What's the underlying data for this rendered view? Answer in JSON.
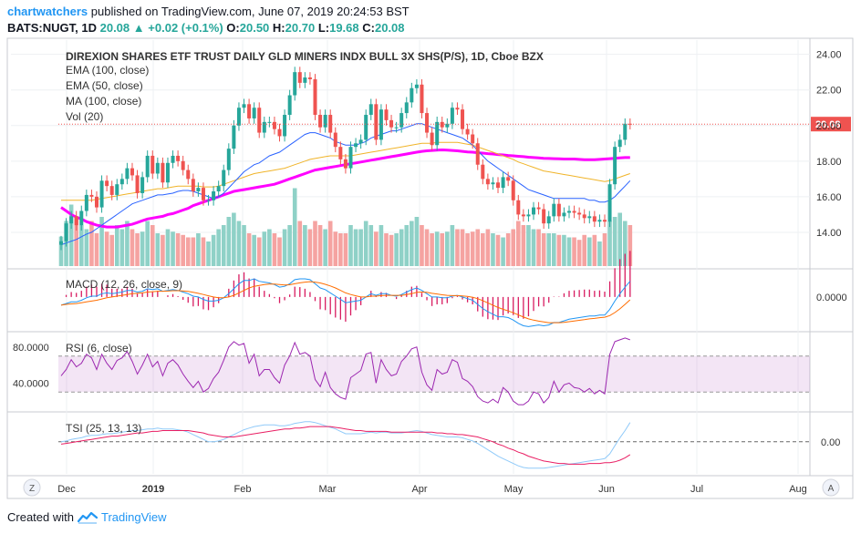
{
  "header": {
    "user": "chartwatchers",
    "published_text": "published on TradingView.com, June 07, 2019 20:24:53 BST",
    "symbol": "BATS:NUGT, 1D",
    "last": "20.08",
    "change": "+0.02 (+0.1%)",
    "o_label": "O:",
    "o": "20.50",
    "h_label": "H:",
    "h": "20.70",
    "l_label": "L:",
    "l": "19.68",
    "c_label": "C:",
    "c": "20.08"
  },
  "footer": {
    "created_with": "Created with",
    "brand": "TradingView"
  },
  "buttons": {
    "zoom_out": "Z",
    "auto": "A"
  },
  "colors": {
    "up": "#26a69a",
    "down": "#ef5350",
    "ema100": "#ff00ff",
    "ema50": "#f0b429",
    "ma100": "#2962ff",
    "macd": "#2196f3",
    "signal": "#ff6d00",
    "rsi": "#9c27b0",
    "tsi_line": "#2196f3",
    "tsi_signal": "#e91e63"
  },
  "chart_data": [
    {
      "type": "candlestick",
      "title": "DIREXION SHARES ETF TRUST DAILY GLD MINERS INDX BULL 3X SHS(P/S), 1D, Cboe BZX",
      "indicators": [
        "EMA (100, close)",
        "EMA (50, close)",
        "MA (100, close)",
        "Vol (20)"
      ],
      "y_ticks": [
        "24.00",
        "22.00",
        "20.00",
        "18.00",
        "16.00",
        "14.00"
      ],
      "ylim": [
        12.0,
        24.8
      ],
      "last_price_label": "20.08",
      "x_ticks": [
        "Dec",
        "2019",
        "Feb",
        "Mar",
        "Apr",
        "May",
        "Jun",
        "Jul",
        "Aug"
      ],
      "close": [
        13.5,
        14.5,
        14.9,
        14.4,
        15.2,
        16.1,
        16.0,
        15.4,
        16.9,
        16.6,
        16.1,
        16.7,
        17.0,
        17.6,
        17.2,
        16.2,
        17.1,
        18.3,
        17.3,
        17.9,
        16.8,
        17.9,
        18.3,
        18.0,
        17.5,
        17.0,
        16.3,
        16.5,
        15.8,
        15.8,
        16.3,
        16.6,
        17.5,
        18.7,
        20.0,
        21.0,
        21.2,
        20.4,
        21.0,
        19.6,
        20.2,
        20.2,
        19.8,
        19.4,
        20.6,
        21.7,
        23.0,
        22.4,
        22.7,
        22.6,
        20.6,
        19.9,
        20.6,
        19.6,
        18.8,
        18.1,
        17.6,
        18.8,
        19.0,
        19.2,
        20.6,
        21.2,
        19.2,
        20.9,
        20.3,
        19.9,
        19.9,
        20.7,
        21.3,
        22.1,
        22.3,
        20.7,
        19.6,
        18.9,
        20.2,
        19.9,
        20.1,
        21.0,
        20.9,
        19.8,
        19.5,
        19.0,
        17.8,
        17.0,
        16.7,
        16.8,
        16.5,
        17.1,
        16.9,
        15.8,
        15.0,
        14.9,
        15.0,
        15.4,
        15.3,
        14.5,
        14.9,
        15.6,
        14.9,
        15.1,
        15.2,
        15.1,
        15.0,
        14.8,
        14.9,
        14.6,
        14.7,
        14.6,
        16.7,
        18.8,
        19.2,
        20.1,
        20.08
      ],
      "ema100": [
        15.4,
        15.2,
        15.0,
        14.85,
        14.75,
        14.6,
        14.5,
        14.4,
        14.35,
        14.3,
        14.3,
        14.3,
        14.35,
        14.4,
        14.45,
        14.55,
        14.65,
        14.75,
        14.8,
        14.85,
        14.9,
        15.0,
        15.05,
        15.15,
        15.25,
        15.35,
        15.5,
        15.6,
        15.7,
        15.8,
        15.9,
        16.0,
        16.1,
        16.2,
        16.3,
        16.35,
        16.4,
        16.45,
        16.5,
        16.55,
        16.6,
        16.65,
        16.7,
        16.8,
        16.9,
        17.0,
        17.1,
        17.2,
        17.3,
        17.4,
        17.5,
        17.55,
        17.6,
        17.65,
        17.7,
        17.75,
        17.8,
        17.85,
        17.9,
        17.95,
        18.0,
        18.05,
        18.1,
        18.15,
        18.2,
        18.25,
        18.3,
        18.35,
        18.4,
        18.45,
        18.5,
        18.55,
        18.58,
        18.6,
        18.62,
        18.63,
        18.62,
        18.6,
        18.58,
        18.55,
        18.52,
        18.5,
        18.47,
        18.45,
        18.42,
        18.4,
        18.37,
        18.35,
        18.32,
        18.3,
        18.27,
        18.25,
        18.22,
        18.2,
        18.18,
        18.16,
        18.15,
        18.14,
        18.13,
        18.12,
        18.12,
        18.12,
        18.1,
        18.08,
        18.08,
        18.08,
        18.1,
        18.12,
        18.14,
        18.16,
        18.18,
        18.2,
        18.2
      ],
      "ema50": [
        15.8,
        15.8,
        15.8,
        15.8,
        15.8,
        15.8,
        15.8,
        15.85,
        15.9,
        15.95,
        16.0,
        16.05,
        16.1,
        16.15,
        16.2,
        16.25,
        16.3,
        16.35,
        16.4,
        16.45,
        16.45,
        16.5,
        16.55,
        16.6,
        16.6,
        16.6,
        16.6,
        16.6,
        16.55,
        16.55,
        16.55,
        16.6,
        16.7,
        16.8,
        16.9,
        17.0,
        17.1,
        17.2,
        17.3,
        17.35,
        17.4,
        17.45,
        17.5,
        17.55,
        17.6,
        17.7,
        17.8,
        17.9,
        18.0,
        18.1,
        18.15,
        18.2,
        18.25,
        18.3,
        18.3,
        18.3,
        18.3,
        18.3,
        18.35,
        18.4,
        18.45,
        18.5,
        18.55,
        18.6,
        18.65,
        18.7,
        18.75,
        18.8,
        18.85,
        18.9,
        18.95,
        19.0,
        19.0,
        19.0,
        19.05,
        19.05,
        19.05,
        19.05,
        19.05,
        19.0,
        18.95,
        18.9,
        18.8,
        18.7,
        18.6,
        18.5,
        18.4,
        18.3,
        18.2,
        18.1,
        17.95,
        17.85,
        17.75,
        17.65,
        17.55,
        17.45,
        17.4,
        17.35,
        17.3,
        17.25,
        17.2,
        17.15,
        17.1,
        17.05,
        17.0,
        16.95,
        16.9,
        16.85,
        16.9,
        17.0,
        17.1,
        17.2,
        17.3
      ],
      "ma100": [
        13.3,
        13.4,
        13.5,
        13.6,
        13.75,
        13.9,
        14.0,
        14.2,
        14.4,
        14.6,
        14.8,
        15.0,
        15.2,
        15.4,
        15.6,
        15.7,
        15.8,
        15.9,
        16.0,
        16.1,
        16.1,
        16.15,
        16.2,
        16.3,
        16.35,
        16.35,
        16.3,
        16.2,
        16.1,
        16.0,
        15.9,
        16.0,
        16.2,
        16.5,
        16.8,
        17.1,
        17.4,
        17.6,
        17.8,
        17.9,
        18.1,
        18.3,
        18.4,
        18.5,
        18.7,
        18.9,
        19.1,
        19.3,
        19.5,
        19.6,
        19.6,
        19.5,
        19.4,
        19.3,
        19.1,
        19.0,
        18.9,
        18.9,
        18.9,
        19.0,
        19.1,
        19.3,
        19.4,
        19.5,
        19.6,
        19.7,
        19.7,
        19.8,
        19.9,
        20.0,
        20.1,
        20.1,
        20.0,
        19.9,
        19.8,
        19.7,
        19.6,
        19.5,
        19.4,
        19.3,
        19.1,
        18.9,
        18.6,
        18.3,
        18.0,
        17.8,
        17.6,
        17.4,
        17.2,
        17.0,
        16.8,
        16.6,
        16.4,
        16.3,
        16.2,
        16.1,
        16.0,
        15.9,
        15.9,
        15.9,
        15.9,
        15.9,
        15.9,
        15.9,
        15.8,
        15.8,
        15.7,
        15.7,
        15.8,
        16.0,
        16.3,
        16.6,
        16.9
      ],
      "volume": [
        0.36,
        0.55,
        0.75,
        0.6,
        0.5,
        0.45,
        0.55,
        0.4,
        0.6,
        0.42,
        0.38,
        0.5,
        0.45,
        0.55,
        0.45,
        0.4,
        0.42,
        0.55,
        0.5,
        0.4,
        0.38,
        0.45,
        0.42,
        0.4,
        0.38,
        0.35,
        0.35,
        0.4,
        0.35,
        0.3,
        0.38,
        0.45,
        0.5,
        0.6,
        0.65,
        0.55,
        0.5,
        0.4,
        0.38,
        0.35,
        0.42,
        0.45,
        0.4,
        0.35,
        0.45,
        0.5,
        0.95,
        0.55,
        0.5,
        0.45,
        0.55,
        0.5,
        0.45,
        0.55,
        0.42,
        0.4,
        0.4,
        0.5,
        0.45,
        0.45,
        0.55,
        0.5,
        0.42,
        0.5,
        0.4,
        0.38,
        0.4,
        0.45,
        0.5,
        0.55,
        0.6,
        0.5,
        0.45,
        0.4,
        0.42,
        0.4,
        0.42,
        0.5,
        0.45,
        0.45,
        0.4,
        0.42,
        0.45,
        0.4,
        0.45,
        0.4,
        0.38,
        0.35,
        0.4,
        0.45,
        0.55,
        0.5,
        0.5,
        0.45,
        0.45,
        0.4,
        0.4,
        0.4,
        0.38,
        0.38,
        0.35,
        0.35,
        0.32,
        0.38,
        0.35,
        0.38,
        0.3,
        0.4,
        0.55,
        0.6,
        0.65,
        0.55,
        0.5
      ]
    },
    {
      "type": "line",
      "title": "MACD (12, 26, close, 9)",
      "y_ticks": [
        "0.0000"
      ],
      "ylim": [
        -2.0,
        1.6
      ],
      "macd": [
        -0.5,
        -0.4,
        -0.3,
        -0.3,
        -0.2,
        -0.05,
        0.05,
        0.05,
        0.2,
        0.25,
        0.2,
        0.25,
        0.3,
        0.4,
        0.4,
        0.3,
        0.35,
        0.5,
        0.45,
        0.5,
        0.35,
        0.4,
        0.45,
        0.4,
        0.3,
        0.2,
        0.05,
        0.0,
        -0.15,
        -0.25,
        -0.25,
        -0.2,
        -0.05,
        0.2,
        0.5,
        0.8,
        1.0,
        1.0,
        1.1,
        0.95,
        0.9,
        0.85,
        0.75,
        0.6,
        0.65,
        0.8,
        1.05,
        1.1,
        1.1,
        1.05,
        0.8,
        0.55,
        0.45,
        0.25,
        0.05,
        -0.15,
        -0.35,
        -0.3,
        -0.25,
        -0.2,
        0.0,
        0.2,
        0.1,
        0.2,
        0.2,
        0.1,
        0.05,
        0.15,
        0.3,
        0.45,
        0.55,
        0.4,
        0.2,
        0.0,
        0.0,
        -0.05,
        -0.05,
        0.05,
        0.1,
        0.0,
        -0.1,
        -0.2,
        -0.45,
        -0.7,
        -0.9,
        -1.05,
        -1.2,
        -1.2,
        -1.25,
        -1.4,
        -1.6,
        -1.75,
        -1.8,
        -1.75,
        -1.7,
        -1.75,
        -1.7,
        -1.55,
        -1.55,
        -1.45,
        -1.35,
        -1.3,
        -1.25,
        -1.2,
        -1.15,
        -1.15,
        -1.1,
        -1.1,
        -0.75,
        -0.25,
        0.2,
        0.6,
        0.95
      ],
      "signal": [
        -0.5,
        -0.45,
        -0.42,
        -0.4,
        -0.35,
        -0.3,
        -0.25,
        -0.2,
        -0.12,
        -0.05,
        0.0,
        0.05,
        0.1,
        0.15,
        0.2,
        0.22,
        0.25,
        0.3,
        0.32,
        0.35,
        0.35,
        0.36,
        0.38,
        0.38,
        0.37,
        0.34,
        0.28,
        0.22,
        0.15,
        0.07,
        0.0,
        -0.05,
        -0.05,
        0.0,
        0.1,
        0.25,
        0.4,
        0.55,
        0.65,
        0.7,
        0.75,
        0.78,
        0.78,
        0.75,
        0.73,
        0.74,
        0.8,
        0.86,
        0.9,
        0.93,
        0.9,
        0.85,
        0.77,
        0.67,
        0.55,
        0.4,
        0.25,
        0.15,
        0.07,
        0.0,
        0.0,
        0.05,
        0.05,
        0.08,
        0.1,
        0.1,
        0.1,
        0.1,
        0.15,
        0.2,
        0.28,
        0.3,
        0.28,
        0.22,
        0.18,
        0.13,
        0.1,
        0.08,
        0.08,
        0.06,
        0.03,
        -0.02,
        -0.1,
        -0.22,
        -0.36,
        -0.5,
        -0.64,
        -0.75,
        -0.85,
        -0.96,
        -1.09,
        -1.22,
        -1.33,
        -1.41,
        -1.47,
        -1.52,
        -1.56,
        -1.56,
        -1.56,
        -1.54,
        -1.5,
        -1.46,
        -1.42,
        -1.38,
        -1.33,
        -1.3,
        -1.26,
        -1.23,
        -1.13,
        -0.95,
        -0.72,
        -0.45,
        -0.17
      ]
    },
    {
      "type": "line",
      "title": "RSI (6, close)",
      "y_ticks": [
        "80.0000",
        "40.0000"
      ],
      "ylim": [
        10,
        95
      ],
      "bands": [
        70,
        30
      ],
      "values": [
        48,
        55,
        66,
        58,
        62,
        72,
        68,
        55,
        72,
        62,
        55,
        65,
        68,
        75,
        64,
        50,
        60,
        72,
        58,
        64,
        48,
        62,
        66,
        60,
        50,
        42,
        35,
        42,
        30,
        34,
        45,
        52,
        65,
        80,
        86,
        82,
        84,
        62,
        72,
        48,
        55,
        55,
        46,
        40,
        60,
        70,
        85,
        72,
        74,
        70,
        44,
        36,
        52,
        35,
        28,
        24,
        22,
        46,
        50,
        54,
        72,
        74,
        40,
        66,
        55,
        48,
        50,
        64,
        70,
        78,
        80,
        52,
        38,
        32,
        55,
        50,
        52,
        66,
        63,
        45,
        42,
        36,
        25,
        20,
        18,
        22,
        18,
        35,
        30,
        20,
        16,
        16,
        20,
        30,
        28,
        18,
        24,
        42,
        30,
        38,
        40,
        35,
        34,
        30,
        34,
        28,
        32,
        28,
        72,
        86,
        88,
        90,
        88
      ]
    },
    {
      "type": "line",
      "title": "TSI (25, 13, 13)",
      "y_ticks": [
        "0.00"
      ],
      "ylim": [
        -40,
        35
      ],
      "tsi": [
        0,
        1,
        3,
        4,
        5,
        7,
        8,
        8,
        9,
        10,
        10,
        11,
        12,
        13,
        14,
        14,
        15,
        16,
        16,
        17,
        16,
        16,
        16,
        15,
        14,
        12,
        9,
        6,
        3,
        0,
        0,
        1,
        3,
        6,
        9,
        12,
        15,
        17,
        19,
        20,
        21,
        21,
        21,
        20,
        20,
        21,
        23,
        24,
        25,
        25,
        24,
        22,
        20,
        18,
        16,
        13,
        10,
        10,
        10,
        10,
        11,
        12,
        11,
        12,
        12,
        11,
        11,
        11,
        12,
        13,
        14,
        13,
        11,
        9,
        8,
        7,
        6,
        6,
        6,
        5,
        3,
        1,
        -2,
        -6,
        -10,
        -14,
        -18,
        -21,
        -24,
        -27,
        -30,
        -32,
        -33,
        -33,
        -33,
        -33,
        -32,
        -31,
        -30,
        -29,
        -28,
        -27,
        -26,
        -25,
        -24,
        -23,
        -22,
        -21,
        -15,
        -5,
        5,
        14,
        24
      ],
      "signal": [
        -3,
        -2,
        -1,
        0,
        1,
        2,
        3,
        4,
        5,
        6,
        7,
        7,
        8,
        9,
        10,
        11,
        11,
        12,
        13,
        13,
        14,
        14,
        14,
        14,
        14,
        14,
        13,
        12,
        11,
        9,
        8,
        7,
        6,
        6,
        6,
        7,
        8,
        9,
        10,
        11,
        12,
        13,
        14,
        15,
        16,
        16,
        17,
        17,
        18,
        19,
        19,
        19,
        19,
        19,
        18,
        17,
        16,
        15,
        14,
        14,
        13,
        13,
        13,
        13,
        13,
        12,
        12,
        12,
        12,
        12,
        12,
        12,
        12,
        12,
        11,
        11,
        10,
        10,
        9,
        9,
        8,
        7,
        6,
        4,
        2,
        0,
        -3,
        -5,
        -8,
        -10,
        -13,
        -15,
        -18,
        -20,
        -22,
        -24,
        -25,
        -26,
        -27,
        -27,
        -28,
        -28,
        -28,
        -28,
        -27,
        -27,
        -27,
        -26,
        -26,
        -25,
        -23,
        -20,
        -16
      ]
    }
  ]
}
